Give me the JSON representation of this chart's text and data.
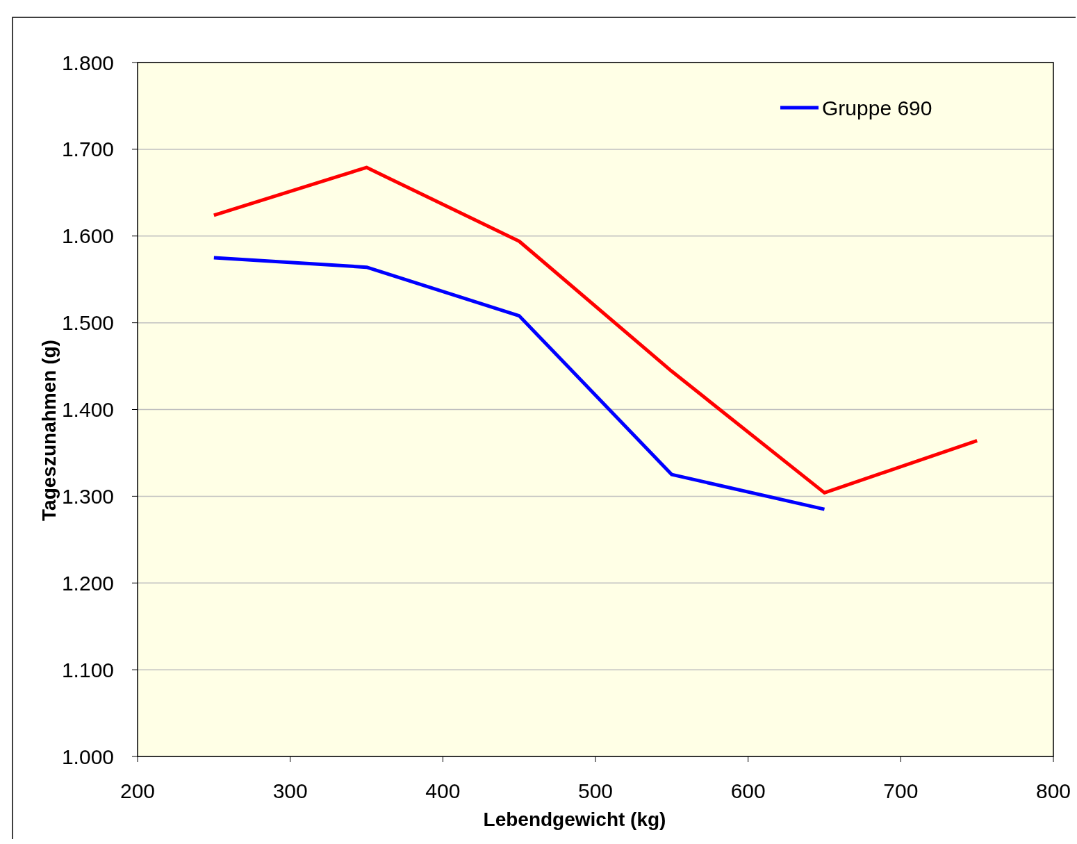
{
  "chart_data": {
    "type": "line",
    "xlabel": "Lebendgewicht (kg)",
    "ylabel": "Tageszunahmen (g)",
    "x": [
      250,
      350,
      450,
      550,
      650,
      750
    ],
    "series": [
      {
        "name": "Gruppe 690",
        "color": "#0000ff",
        "values": [
          1575,
          1564,
          1508,
          1325,
          1285,
          null
        ]
      },
      {
        "color": "#ff0000",
        "values": [
          1624,
          1679,
          1594,
          1444,
          1304,
          1364
        ]
      }
    ],
    "xlim": [
      200,
      800
    ],
    "xticks": [
      200,
      300,
      400,
      500,
      600,
      700,
      800
    ],
    "ylim": [
      1000,
      1800
    ],
    "yticks": [
      {
        "value": 1000,
        "label": "1.000"
      },
      {
        "value": 1100,
        "label": "1.100"
      },
      {
        "value": 1200,
        "label": "1.200"
      },
      {
        "value": 1300,
        "label": "1.300"
      },
      {
        "value": 1400,
        "label": "1.400"
      },
      {
        "value": 1500,
        "label": "1.500"
      },
      {
        "value": 1600,
        "label": "1.600"
      },
      {
        "value": 1700,
        "label": "1.700"
      },
      {
        "value": 1800,
        "label": "1.800"
      }
    ],
    "grid": "y",
    "legend": "top right",
    "marker": "none",
    "line_style": "solid"
  }
}
